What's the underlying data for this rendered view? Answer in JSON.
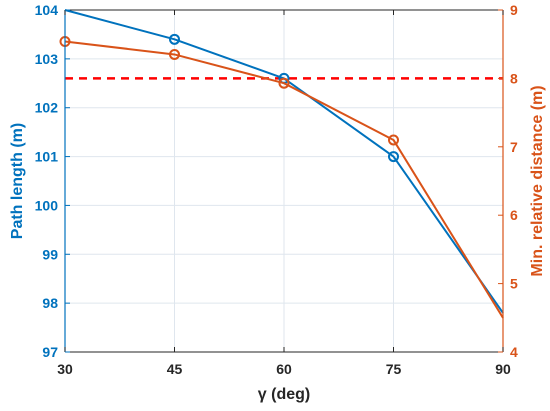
{
  "chart_data": {
    "type": "line",
    "xlabel": "γ (deg)",
    "x": [
      30,
      45,
      60,
      75,
      90
    ],
    "xlim": [
      30,
      90
    ],
    "xticks": [
      30,
      45,
      60,
      75,
      90
    ],
    "grid": true,
    "y_left": {
      "label": "Path length (m)",
      "lim": [
        97,
        104
      ],
      "ticks": [
        97,
        98,
        99,
        100,
        101,
        102,
        103,
        104
      ],
      "color": "#0072BD"
    },
    "y_right": {
      "label": "Min. relative distance (m)",
      "lim": [
        4,
        9
      ],
      "ticks": [
        4,
        5,
        6,
        7,
        8,
        9
      ],
      "color": "#D95319"
    },
    "series": [
      {
        "axis": "left",
        "color": "#0072BD",
        "points": [
          [
            30,
            104.0
          ],
          [
            45,
            103.4
          ],
          [
            60,
            102.6
          ],
          [
            75,
            101.0
          ],
          [
            90,
            97.8
          ]
        ],
        "markers": [
          [
            45,
            103.4
          ],
          [
            60,
            102.6
          ],
          [
            75,
            101.0
          ]
        ]
      },
      {
        "axis": "right",
        "color": "#D95319",
        "points": [
          [
            30,
            8.54
          ],
          [
            45,
            8.35
          ],
          [
            60,
            7.93
          ],
          [
            75,
            7.1
          ],
          [
            90,
            4.5
          ]
        ],
        "markers": [
          [
            30,
            8.54
          ],
          [
            45,
            8.35
          ],
          [
            60,
            7.93
          ],
          [
            75,
            7.1
          ]
        ]
      }
    ],
    "reference_line": {
      "axis": "right",
      "value": 8,
      "color": "#FF0000",
      "style": "dashed"
    }
  }
}
